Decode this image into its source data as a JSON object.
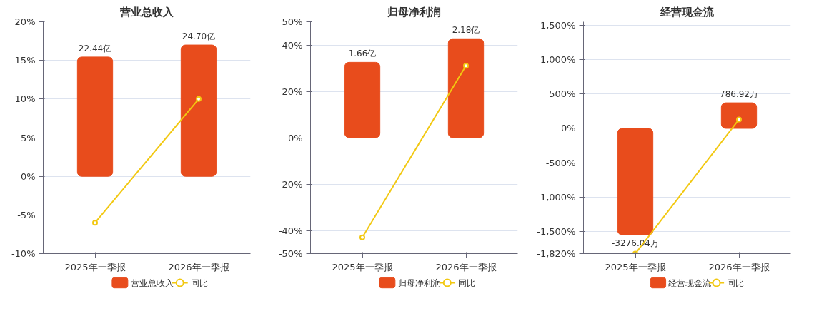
{
  "chart_data": [
    {
      "type": "bar",
      "title": "营业总收入",
      "categories": [
        "2025年一季报",
        "2026年一季报"
      ],
      "series": [
        {
          "name": "营业总收入",
          "axis": "y2",
          "color": "#e84c1c",
          "values": [
            22.44,
            24.7
          ],
          "value_labels": [
            "22.44亿",
            "24.70亿"
          ]
        },
        {
          "name": "同比",
          "type": "line",
          "color": "#f2c811",
          "values": [
            -6.0,
            10.0
          ]
        }
      ],
      "ylim": [
        -10,
        20
      ],
      "yticks": [
        {
          "value": -10,
          "label": "-10%"
        },
        {
          "value": -5,
          "label": "-5%"
        },
        {
          "value": 0,
          "label": "0%"
        },
        {
          "value": 5,
          "label": "5%"
        },
        {
          "value": 10,
          "label": "10%"
        },
        {
          "value": 15,
          "label": "15%"
        },
        {
          "value": 20,
          "label": "20%"
        }
      ],
      "y2lim": [
        -14.53,
        29.07
      ],
      "grid": "y",
      "legend": "bottom",
      "marker": "circle",
      "line_style": "solid"
    },
    {
      "type": "bar",
      "title": "归母净利润",
      "categories": [
        "2025年一季报",
        "2026年一季报"
      ],
      "series": [
        {
          "name": "归母净利润",
          "axis": "y2",
          "color": "#e84c1c",
          "values": [
            1.66,
            2.18
          ],
          "value_labels": [
            "1.66亿",
            "2.18亿"
          ]
        },
        {
          "name": "同比",
          "type": "line",
          "color": "#f2c811",
          "values": [
            -43,
            31
          ]
        }
      ],
      "ylim": [
        -50,
        50
      ],
      "yticks": [
        {
          "value": -50,
          "label": "-50%"
        },
        {
          "value": -40,
          "label": "-40%"
        },
        {
          "value": -20,
          "label": "-20%"
        },
        {
          "value": 0,
          "label": "0%"
        },
        {
          "value": 20,
          "label": "20%"
        },
        {
          "value": 40,
          "label": "40%"
        },
        {
          "value": 50,
          "label": "50%"
        }
      ],
      "y2lim": [
        -2.554,
        2.554
      ],
      "grid": "y",
      "legend": "bottom",
      "marker": "circle",
      "line_style": "solid"
    },
    {
      "type": "bar",
      "title": "经营现金流",
      "categories": [
        "2025年一季报",
        "2026年一季报"
      ],
      "series": [
        {
          "name": "经营现金流",
          "axis": "y2",
          "color": "#e84c1c",
          "values": [
            -3276.04,
            786.92
          ],
          "value_labels": [
            "-3276.04万",
            "786.92万"
          ]
        },
        {
          "name": "同比",
          "type": "line",
          "color": "#f2c811",
          "values": [
            -1820,
            130
          ]
        }
      ],
      "ylim": [
        -1820,
        1550
      ],
      "yticks": [
        {
          "value": -1820,
          "label": "-1,820%"
        },
        {
          "value": -1500,
          "label": "-1,500%"
        },
        {
          "value": -1000,
          "label": "-1,000%"
        },
        {
          "value": -500,
          "label": "-500%"
        },
        {
          "value": 0,
          "label": "0%"
        },
        {
          "value": 500,
          "label": "500%"
        },
        {
          "value": 1000,
          "label": "1,000%"
        },
        {
          "value": 1500,
          "label": "1,500%"
        }
      ],
      "y2lim": [
        -3851,
        3280
      ],
      "grid": "y",
      "legend": "bottom",
      "marker": "circle",
      "line_style": "solid"
    }
  ]
}
